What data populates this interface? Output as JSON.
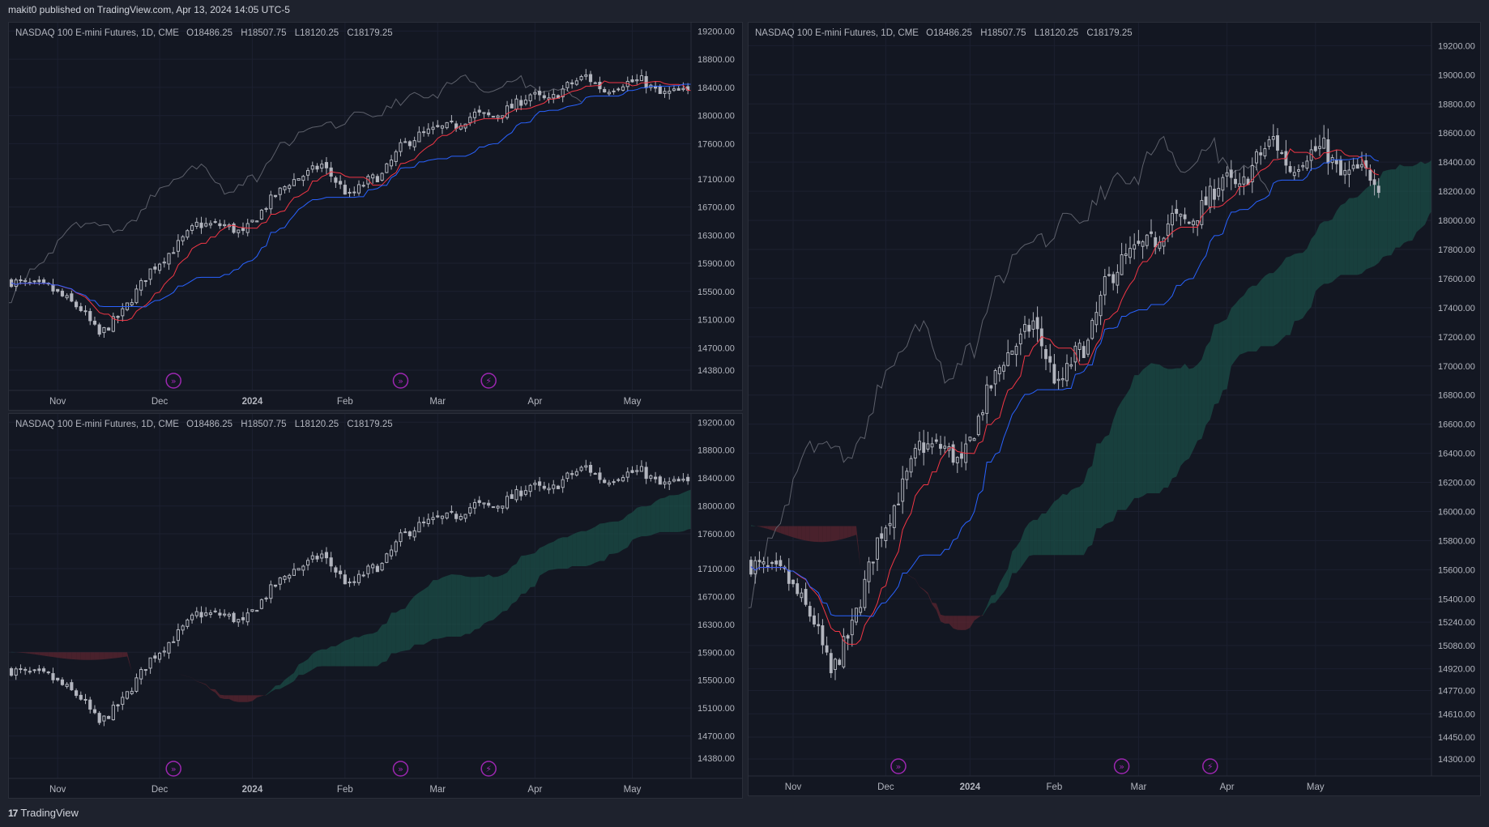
{
  "header": {
    "published_text": "makit0 published on TradingView.com, Apr 13, 2024 14:05 UTC-5"
  },
  "footer": {
    "brand": "TradingView",
    "logo_glyph": "17"
  },
  "colors": {
    "background": "#131722",
    "grid": "#1c2030",
    "candle": "#b2b5be",
    "conversion_line": "#f23645",
    "base_line": "#2962ff",
    "lagging_span": "#5d606b",
    "cloud_bull": "#1b4d47",
    "cloud_bear": "#5c2530",
    "event_icon": "#9c27b0"
  },
  "instrument": {
    "name": "NASDAQ 100 E-mini Futures, 1D, CME",
    "open": "O18486.25",
    "high": "H18507.75",
    "low": "L18120.25",
    "close": "C18179.25"
  },
  "chart_data": [
    {
      "panel": "top-left",
      "type": "candlestick",
      "title": "NASDAQ 100 E-mini Futures, 1D, CME",
      "indicators": [
        "conversion_line",
        "base_line",
        "lagging_span"
      ],
      "x_ticks": [
        "Nov",
        "Dec",
        "2024",
        "Feb",
        "Mar",
        "Apr",
        "May"
      ],
      "y_ticks": [
        "19200.00",
        "18800.00",
        "18400.00",
        "18000.00",
        "17600.00",
        "17100.00",
        "16700.00",
        "16300.00",
        "15900.00",
        "15500.00",
        "15100.00",
        "14700.00",
        "14380.00"
      ],
      "ylim": [
        14300,
        19250
      ],
      "event_icons": [
        "dividend",
        "dividend",
        "earnings"
      ]
    },
    {
      "panel": "bottom-left",
      "type": "candlestick",
      "title": "NASDAQ 100 E-mini Futures, 1D, CME",
      "indicators": [
        "cloud"
      ],
      "x_ticks": [
        "Nov",
        "Dec",
        "2024",
        "Feb",
        "Mar",
        "Apr",
        "May"
      ],
      "y_ticks": [
        "19200.00",
        "18800.00",
        "18400.00",
        "18000.00",
        "17600.00",
        "17100.00",
        "16700.00",
        "16300.00",
        "15900.00",
        "15500.00",
        "15100.00",
        "14700.00",
        "14380.00"
      ],
      "ylim": [
        14300,
        19250
      ],
      "event_icons": [
        "dividend",
        "dividend",
        "earnings"
      ]
    },
    {
      "panel": "right",
      "type": "candlestick",
      "title": "NASDAQ 100 E-mini Futures, 1D, CME",
      "indicators": [
        "conversion_line",
        "base_line",
        "lagging_span",
        "cloud"
      ],
      "x_ticks": [
        "Nov",
        "Dec",
        "2024",
        "Feb",
        "Mar",
        "Apr",
        "May"
      ],
      "y_ticks": [
        "19200.00",
        "19000.00",
        "18800.00",
        "18600.00",
        "18400.00",
        "18200.00",
        "18000.00",
        "17800.00",
        "17600.00",
        "17400.00",
        "17200.00",
        "17000.00",
        "16800.00",
        "16600.00",
        "16400.00",
        "16200.00",
        "16000.00",
        "15800.00",
        "15600.00",
        "15400.00",
        "15240.00",
        "15080.00",
        "14920.00",
        "14770.00",
        "14610.00",
        "14450.00",
        "14300.00"
      ],
      "ylim": [
        14250,
        19280
      ],
      "event_icons": [
        "dividend",
        "dividend",
        "earnings"
      ]
    }
  ]
}
